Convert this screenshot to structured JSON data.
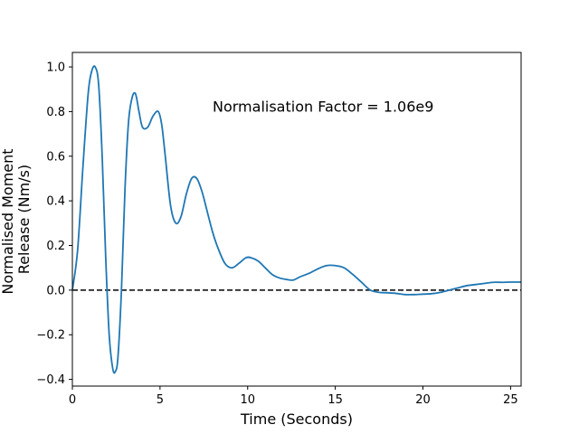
{
  "chart_data": {
    "type": "line",
    "title": "",
    "xlabel": "Time (Seconds)",
    "ylabel_lines": [
      "Normalised Moment",
      "Release (Nm/s)"
    ],
    "xlim": [
      0,
      25.6
    ],
    "ylim": [
      -0.43,
      1.065
    ],
    "xticks": [
      0,
      5,
      10,
      15,
      20,
      25
    ],
    "yticks": [
      -0.4,
      -0.2,
      0.0,
      0.2,
      0.4,
      0.6,
      0.8,
      1.0
    ],
    "ytick_labels": [
      "−0.4",
      "−0.2",
      "0.0",
      "0.2",
      "0.4",
      "0.6",
      "0.8",
      "1.0"
    ],
    "grid": false,
    "annotations": [
      {
        "text": "Normalisation Factor = 1.06e9",
        "x": 8.0,
        "y": 0.82
      }
    ],
    "reference_lines": [
      {
        "orientation": "horizontal",
        "y": 0.0,
        "style": "dashed",
        "color": "#000000"
      }
    ],
    "series": [
      {
        "color": "#1f77b4",
        "x": [
          0,
          0.3,
          0.6,
          0.9,
          1.1,
          1.3,
          1.5,
          1.7,
          1.9,
          2.1,
          2.3,
          2.45,
          2.6,
          2.8,
          3.0,
          3.2,
          3.4,
          3.6,
          3.8,
          4.0,
          4.3,
          4.6,
          4.9,
          5.1,
          5.3,
          5.6,
          5.9,
          6.2,
          6.5,
          6.8,
          7.1,
          7.4,
          7.7,
          8.0,
          8.3,
          8.7,
          9.1,
          9.5,
          9.9,
          10.2,
          10.6,
          11.0,
          11.4,
          11.8,
          12.2,
          12.6,
          13.0,
          13.5,
          14.0,
          14.5,
          15.0,
          15.5,
          16.0,
          16.5,
          17.0,
          17.5,
          18.0,
          18.5,
          19.0,
          19.5,
          20.0,
          20.5,
          21.0,
          21.5,
          22.0,
          22.5,
          23.0,
          23.5,
          24.0,
          24.5,
          25.0,
          25.6
        ],
        "y": [
          0.0,
          0.18,
          0.55,
          0.88,
          0.98,
          1.0,
          0.92,
          0.6,
          0.15,
          -0.2,
          -0.35,
          -0.365,
          -0.3,
          0.0,
          0.45,
          0.75,
          0.86,
          0.88,
          0.8,
          0.73,
          0.73,
          0.78,
          0.8,
          0.74,
          0.6,
          0.38,
          0.3,
          0.33,
          0.43,
          0.5,
          0.5,
          0.44,
          0.35,
          0.26,
          0.19,
          0.12,
          0.1,
          0.12,
          0.145,
          0.145,
          0.13,
          0.1,
          0.07,
          0.055,
          0.048,
          0.045,
          0.06,
          0.075,
          0.095,
          0.11,
          0.11,
          0.1,
          0.07,
          0.035,
          0.0,
          -0.01,
          -0.012,
          -0.015,
          -0.02,
          -0.02,
          -0.018,
          -0.016,
          -0.01,
          0.0,
          0.01,
          0.02,
          0.025,
          0.03,
          0.035,
          0.035,
          0.036,
          0.036
        ]
      }
    ]
  }
}
